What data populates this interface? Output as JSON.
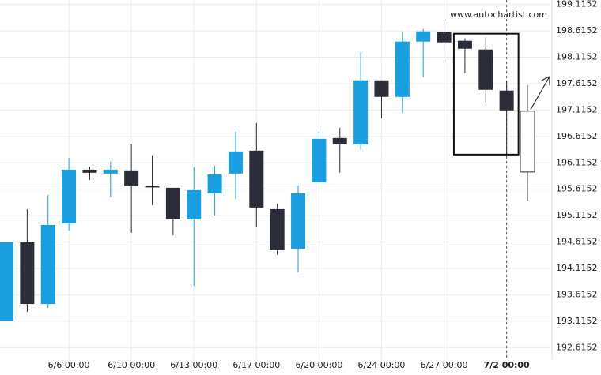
{
  "chart_data": {
    "type": "candlestick",
    "source": "www.autochartist.com",
    "categories": [
      null,
      null,
      null,
      "6/6 00:00",
      null,
      null,
      "6/10 00:00",
      null,
      null,
      "6/13 00:00",
      null,
      null,
      "6/17 00:00",
      null,
      null,
      "6/20 00:00",
      null,
      null,
      "6/24 00:00",
      null,
      null,
      "6/27 00:00",
      null,
      null,
      "7/2 00:00",
      null
    ],
    "open": [
      193.127,
      194.609,
      193.441,
      194.969,
      195.986,
      195.912,
      195.972,
      195.672,
      195.642,
      195.044,
      195.537,
      195.912,
      196.346,
      195.238,
      194.49,
      195.747,
      196.585,
      196.466,
      197.678,
      197.364,
      198.412,
      198.591,
      198.427,
      198.262,
      197.484,
      195.942
    ],
    "high": [
      194.609,
      195.238,
      195.507,
      196.211,
      196.046,
      196.136,
      196.466,
      196.256,
      195.642,
      196.031,
      196.061,
      196.705,
      196.87,
      195.343,
      195.687,
      196.705,
      196.78,
      198.217,
      197.678,
      198.606,
      198.651,
      198.831,
      198.472,
      198.487,
      197.663,
      197.588
    ],
    "low": [
      193.127,
      193.292,
      193.367,
      194.834,
      195.792,
      195.463,
      194.789,
      195.313,
      194.744,
      193.786,
      195.118,
      195.433,
      194.894,
      194.37,
      194.04,
      195.747,
      195.927,
      196.361,
      196.96,
      197.064,
      197.738,
      198.037,
      197.813,
      197.259,
      196.241,
      195.388
    ],
    "close": [
      194.609,
      193.441,
      194.938,
      195.986,
      195.927,
      195.986,
      195.672,
      195.657,
      195.044,
      195.597,
      195.897,
      196.331,
      195.268,
      194.46,
      195.537,
      196.57,
      196.466,
      197.678,
      197.364,
      198.412,
      198.606,
      198.397,
      198.277,
      197.499,
      197.109,
      197.094
    ],
    "up_color": "#1a9fe0",
    "down_color": "#2b2d38",
    "forecast_color": "#2b2d38",
    "ylim": [
      192.47,
      199.2
    ],
    "yticks": [
      199.1152,
      198.6152,
      198.1152,
      197.6152,
      197.1152,
      196.6152,
      196.1152,
      195.6152,
      195.1152,
      194.6152,
      194.1152,
      193.6152,
      193.1152,
      192.6152
    ],
    "grid": true
  }
}
